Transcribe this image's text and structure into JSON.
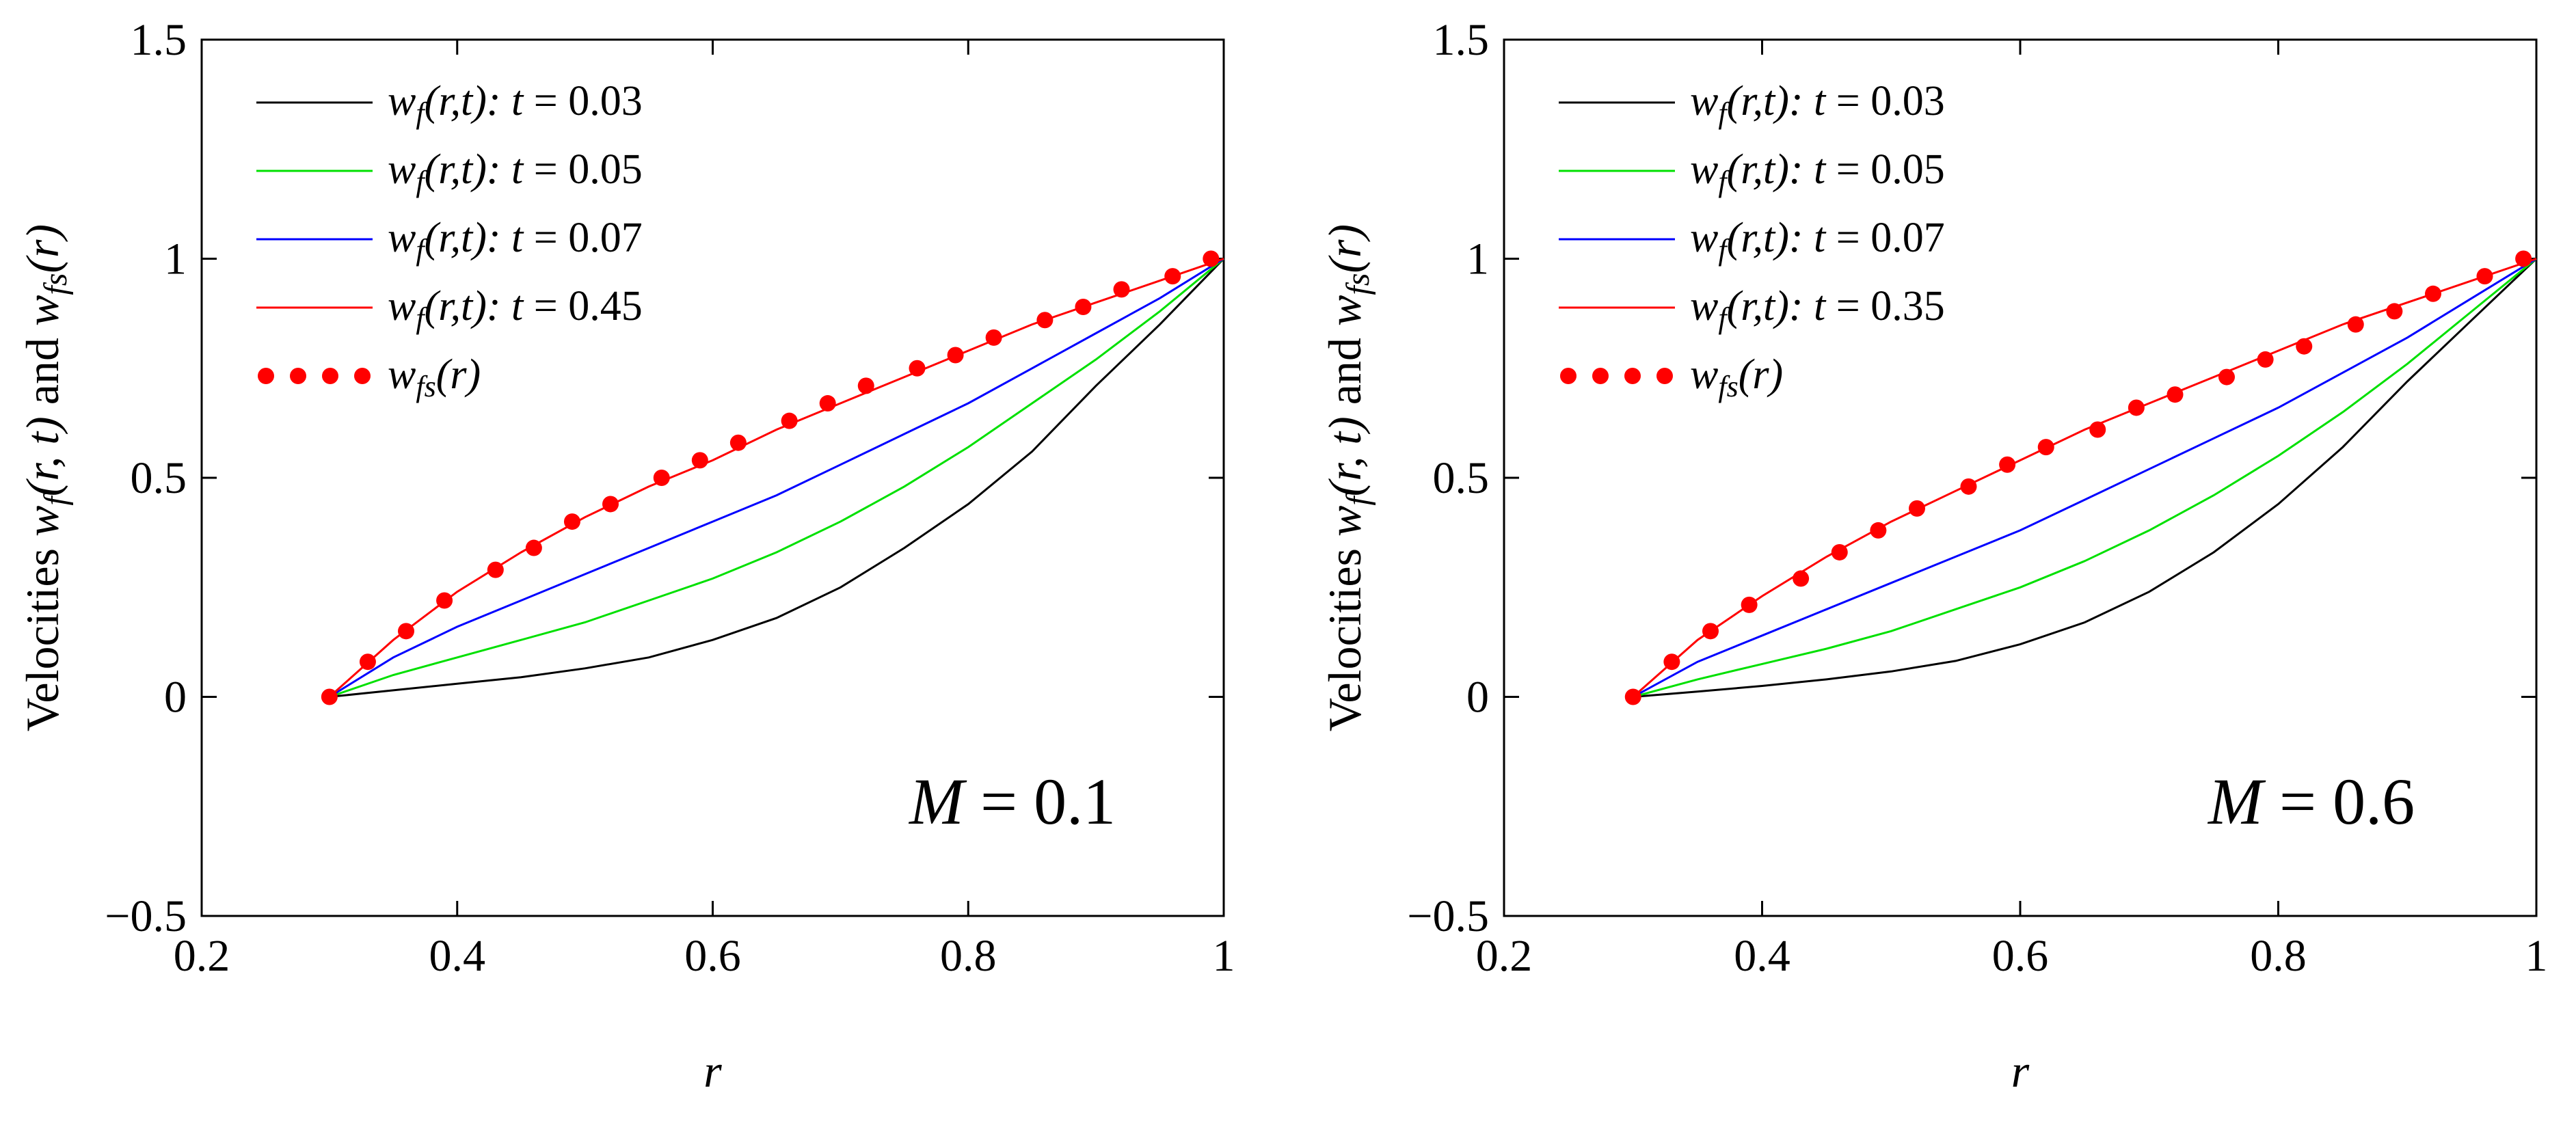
{
  "chart_data": [
    {
      "type": "line",
      "title": "",
      "xlabel": "r",
      "ylabel": "Velocities w_f(r, t) and w_fs(r)",
      "ylabel_parts": {
        "prefix": "Velocities ",
        "w1": "w",
        "w1_sub": "f",
        "w1_args": "(r, t)",
        "mid": " and ",
        "w2": "w",
        "w2_sub": "fs",
        "w2_args": "(r)"
      },
      "xlim": [
        0.2,
        1
      ],
      "ylim": [
        -0.5,
        1.5
      ],
      "xticks": [
        0.2,
        0.4,
        0.6,
        0.8,
        1
      ],
      "xtick_labels": [
        "0.2",
        "0.4",
        "0.6",
        "0.8",
        "1"
      ],
      "yticks": [
        -0.5,
        0,
        0.5,
        1,
        1.5
      ],
      "ytick_labels": [
        "−0.5",
        "0",
        "0.5",
        "1",
        "1.5"
      ],
      "grid": false,
      "legend_position": "top-left",
      "annotation": {
        "var": "M",
        "value": "= 0.1"
      },
      "x": [
        0.3,
        0.35,
        0.4,
        0.45,
        0.5,
        0.55,
        0.6,
        0.65,
        0.7,
        0.75,
        0.8,
        0.85,
        0.9,
        0.95,
        1.0
      ],
      "series": [
        {
          "name": "w_f(r,t): t = 0.03",
          "label": {
            "w": "w",
            "sub": "f",
            "args": "(r,t):",
            "t": "t",
            "val": "= 0.03"
          },
          "color": "#000000",
          "style": "line",
          "values": [
            0,
            0.015,
            0.03,
            0.045,
            0.065,
            0.09,
            0.13,
            0.18,
            0.25,
            0.34,
            0.44,
            0.56,
            0.71,
            0.85,
            1.0
          ]
        },
        {
          "name": "w_f(r,t): t = 0.05",
          "label": {
            "w": "w",
            "sub": "f",
            "args": "(r,t):",
            "t": "t",
            "val": "= 0.05"
          },
          "color": "#00e000",
          "style": "line",
          "values": [
            0,
            0.05,
            0.09,
            0.13,
            0.17,
            0.22,
            0.27,
            0.33,
            0.4,
            0.48,
            0.57,
            0.67,
            0.77,
            0.88,
            1.0
          ]
        },
        {
          "name": "w_f(r,t): t = 0.07",
          "label": {
            "w": "w",
            "sub": "f",
            "args": "(r,t):",
            "t": "t",
            "val": "= 0.07"
          },
          "color": "#0000ff",
          "style": "line",
          "values": [
            0,
            0.09,
            0.16,
            0.22,
            0.28,
            0.34,
            0.4,
            0.46,
            0.53,
            0.6,
            0.67,
            0.75,
            0.83,
            0.91,
            1.0
          ]
        },
        {
          "name": "w_f(r,t): t = 0.45",
          "label": {
            "w": "w",
            "sub": "f",
            "args": "(r,t):",
            "t": "t",
            "val": "= 0.45"
          },
          "color": "#ff0000",
          "style": "line",
          "values": [
            0,
            0.13,
            0.24,
            0.33,
            0.41,
            0.48,
            0.54,
            0.61,
            0.67,
            0.73,
            0.79,
            0.85,
            0.9,
            0.95,
            1.0
          ]
        },
        {
          "name": "w_fs(r)",
          "label": {
            "w": "w",
            "sub": "fs",
            "args": "(r)"
          },
          "color": "#ff0000",
          "style": "markers",
          "x": [
            0.3,
            0.33,
            0.36,
            0.39,
            0.43,
            0.46,
            0.49,
            0.52,
            0.56,
            0.59,
            0.62,
            0.66,
            0.69,
            0.72,
            0.76,
            0.79,
            0.82,
            0.86,
            0.89,
            0.92,
            0.96,
            0.99
          ],
          "values": [
            0,
            0.08,
            0.15,
            0.22,
            0.29,
            0.34,
            0.4,
            0.44,
            0.5,
            0.54,
            0.58,
            0.63,
            0.67,
            0.71,
            0.75,
            0.78,
            0.82,
            0.86,
            0.89,
            0.93,
            0.96,
            1.0
          ]
        }
      ]
    },
    {
      "type": "line",
      "title": "",
      "xlabel": "r",
      "ylabel": "Velocities w_f(r, t) and w_fs(r)",
      "ylabel_parts": {
        "prefix": "Velocities ",
        "w1": "w",
        "w1_sub": "f",
        "w1_args": "(r, t)",
        "mid": " and ",
        "w2": "w",
        "w2_sub": "fs",
        "w2_args": "(r)"
      },
      "xlim": [
        0.2,
        1
      ],
      "ylim": [
        -0.5,
        1.5
      ],
      "xticks": [
        0.2,
        0.4,
        0.6,
        0.8,
        1
      ],
      "xtick_labels": [
        "0.2",
        "0.4",
        "0.6",
        "0.8",
        "1"
      ],
      "yticks": [
        -0.5,
        0,
        0.5,
        1,
        1.5
      ],
      "ytick_labels": [
        "−0.5",
        "0",
        "0.5",
        "1",
        "1.5"
      ],
      "grid": false,
      "legend_position": "top-left",
      "annotation": {
        "var": "M",
        "value": "= 0.6"
      },
      "x": [
        0.3,
        0.35,
        0.4,
        0.45,
        0.5,
        0.55,
        0.6,
        0.65,
        0.7,
        0.75,
        0.8,
        0.85,
        0.9,
        0.95,
        1.0
      ],
      "series": [
        {
          "name": "w_f(r,t): t = 0.03",
          "label": {
            "w": "w",
            "sub": "f",
            "args": "(r,t):",
            "t": "t",
            "val": "= 0.03"
          },
          "color": "#000000",
          "style": "line",
          "values": [
            0,
            0.012,
            0.025,
            0.04,
            0.058,
            0.082,
            0.12,
            0.17,
            0.24,
            0.33,
            0.44,
            0.57,
            0.72,
            0.86,
            1.0
          ]
        },
        {
          "name": "w_f(r,t): t = 0.05",
          "label": {
            "w": "w",
            "sub": "f",
            "args": "(r,t):",
            "t": "t",
            "val": "= 0.05"
          },
          "color": "#00e000",
          "style": "line",
          "values": [
            0,
            0.04,
            0.075,
            0.11,
            0.15,
            0.2,
            0.25,
            0.31,
            0.38,
            0.46,
            0.55,
            0.65,
            0.76,
            0.88,
            1.0
          ]
        },
        {
          "name": "w_f(r,t): t = 0.07",
          "label": {
            "w": "w",
            "sub": "f",
            "args": "(r,t):",
            "t": "t",
            "val": "= 0.07"
          },
          "color": "#0000ff",
          "style": "line",
          "values": [
            0,
            0.08,
            0.14,
            0.2,
            0.26,
            0.32,
            0.38,
            0.45,
            0.52,
            0.59,
            0.66,
            0.74,
            0.82,
            0.91,
            1.0
          ]
        },
        {
          "name": "w_f(r,t): t = 0.35",
          "label": {
            "w": "w",
            "sub": "f",
            "args": "(r,t):",
            "t": "t",
            "val": "= 0.35"
          },
          "color": "#ff0000",
          "style": "line",
          "values": [
            0,
            0.13,
            0.23,
            0.32,
            0.4,
            0.47,
            0.54,
            0.61,
            0.67,
            0.73,
            0.79,
            0.85,
            0.9,
            0.95,
            1.0
          ]
        },
        {
          "name": "w_fs(r)",
          "label": {
            "w": "w",
            "sub": "fs",
            "args": "(r)"
          },
          "color": "#ff0000",
          "style": "markers",
          "x": [
            0.3,
            0.33,
            0.36,
            0.39,
            0.43,
            0.46,
            0.49,
            0.52,
            0.56,
            0.59,
            0.62,
            0.66,
            0.69,
            0.72,
            0.76,
            0.79,
            0.82,
            0.86,
            0.89,
            0.92,
            0.96,
            0.99
          ],
          "values": [
            0,
            0.08,
            0.15,
            0.21,
            0.27,
            0.33,
            0.38,
            0.43,
            0.48,
            0.53,
            0.57,
            0.61,
            0.66,
            0.69,
            0.73,
            0.77,
            0.8,
            0.85,
            0.88,
            0.92,
            0.96,
            1.0
          ]
        }
      ]
    }
  ]
}
